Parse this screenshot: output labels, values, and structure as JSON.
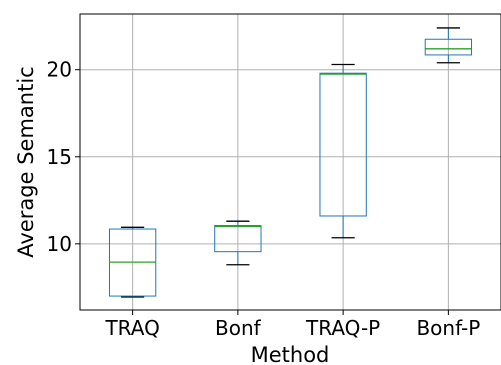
{
  "chart_data": {
    "type": "box",
    "title": "",
    "xlabel": "Method",
    "ylabel": "Average Semantic",
    "ylim": [
      6.2,
      23.2
    ],
    "yticks": [
      10,
      15,
      20
    ],
    "grid": true,
    "categories": [
      "TRAQ",
      "Bonf",
      "TRAQ-P",
      "Bonf-P"
    ],
    "boxes": [
      {
        "label": "TRAQ",
        "whisker_low": 6.95,
        "q1": 7.0,
        "median": 8.95,
        "q3": 10.85,
        "whisker_high": 10.95
      },
      {
        "label": "Bonf",
        "whisker_low": 8.8,
        "q1": 9.55,
        "median": 11.0,
        "q3": 11.05,
        "whisker_high": 11.3
      },
      {
        "label": "TRAQ-P",
        "whisker_low": 10.35,
        "q1": 11.6,
        "median": 19.75,
        "q3": 19.8,
        "whisker_high": 20.3
      },
      {
        "label": "Bonf-P",
        "whisker_low": 20.4,
        "q1": 20.85,
        "median": 21.2,
        "q3": 21.75,
        "whisker_high": 22.4
      }
    ],
    "colors": {
      "box": "#1f77b4",
      "median": "#2ca02c",
      "whisker": "#000000",
      "grid": "#b0b0b0"
    }
  }
}
